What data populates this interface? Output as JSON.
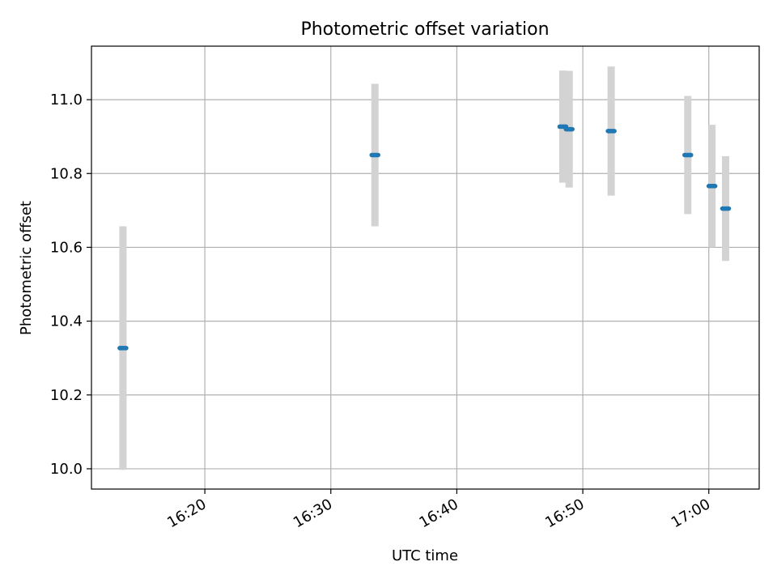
{
  "chart_data": {
    "type": "scatter",
    "title": "Photometric offset variation",
    "xlabel": "UTC time",
    "ylabel": "Photometric offset",
    "x_axis_kind": "time",
    "xlim": [
      "16:11:00",
      "17:04:00"
    ],
    "ylim": [
      9.945,
      11.145
    ],
    "x_ticks": [
      "16:20",
      "16:30",
      "16:40",
      "16:50",
      "17:00"
    ],
    "y_ticks": [
      10.0,
      10.2,
      10.4,
      10.6,
      10.8,
      11.0
    ],
    "y_tick_labels": [
      "10.0",
      "10.2",
      "10.4",
      "10.6",
      "10.8",
      "11.0"
    ],
    "grid": true,
    "legend": "none",
    "series": [
      {
        "marker_color": "#1f77b4",
        "error_bar_color": "#d3d3d3",
        "points": [
          {
            "x": "16:13:30",
            "y": 10.327,
            "y_low": 9.997,
            "y_high": 10.657
          },
          {
            "x": "16:33:30",
            "y": 10.85,
            "y_low": 10.657,
            "y_high": 11.043
          },
          {
            "x": "16:48:25",
            "y": 10.927,
            "y_low": 10.775,
            "y_high": 11.079
          },
          {
            "x": "16:48:55",
            "y": 10.92,
            "y_low": 10.762,
            "y_high": 11.078
          },
          {
            "x": "16:52:15",
            "y": 10.915,
            "y_low": 10.74,
            "y_high": 11.09
          },
          {
            "x": "16:58:20",
            "y": 10.85,
            "y_low": 10.69,
            "y_high": 11.01
          },
          {
            "x": "17:00:15",
            "y": 10.766,
            "y_low": 10.6,
            "y_high": 10.932
          },
          {
            "x": "17:01:20",
            "y": 10.705,
            "y_low": 10.563,
            "y_high": 10.847
          }
        ]
      }
    ]
  }
}
